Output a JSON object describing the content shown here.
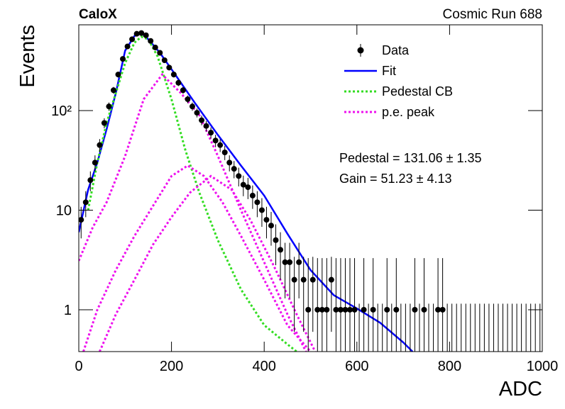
{
  "chart_data": {
    "type": "log-fit",
    "title": "CaloX",
    "subtitle": "Cosmic Run 688",
    "x_label": "ADC",
    "y_label": "Events",
    "xlim": [
      0,
      1000
    ],
    "xticks": [
      0,
      200,
      400,
      600,
      800,
      1000
    ],
    "ylim": [
      0.38,
      726
    ],
    "yticks": [
      1,
      10,
      {
        "value": 100,
        "label": "10²"
      }
    ],
    "log_y": true,
    "legend": "top-right",
    "annotations": [
      "Pedestal = 131.06 ± 1.35",
      "Gain = 51.23 ± 4.13"
    ],
    "series": [
      {
        "name": "Data",
        "type": "points",
        "color": "#000000",
        "x": [
          5,
          15,
          25,
          35,
          45,
          55,
          65,
          75,
          85,
          95,
          105,
          115,
          125,
          135,
          145,
          155,
          165,
          175,
          185,
          195,
          205,
          215,
          225,
          235,
          245,
          255,
          265,
          275,
          285,
          295,
          305,
          315,
          325,
          335,
          345,
          355,
          365,
          375,
          385,
          395,
          405,
          415,
          425,
          435,
          445,
          455,
          465,
          475,
          485,
          495,
          505,
          515,
          525,
          535,
          545,
          555,
          565,
          575,
          585,
          595,
          605,
          615,
          625,
          635,
          645,
          655,
          665,
          675,
          685,
          695,
          705,
          715,
          725,
          735,
          745,
          755,
          765,
          775,
          785,
          795,
          805,
          815,
          825,
          835,
          845,
          855,
          865,
          875,
          885,
          895,
          905,
          915,
          925,
          935,
          945,
          955,
          965,
          975,
          985,
          995
        ],
        "values": [
          8,
          12,
          20,
          30,
          45,
          75,
          110,
          160,
          230,
          330,
          440,
          520,
          590,
          600,
          570,
          500,
          430,
          380,
          320,
          270,
          230,
          190,
          160,
          130,
          110,
          95,
          80,
          70,
          60,
          50,
          45,
          38,
          30,
          26,
          22,
          18,
          17,
          14,
          12,
          10,
          8,
          7,
          5,
          4,
          3,
          3,
          2,
          3,
          2,
          1,
          2,
          1,
          1,
          1,
          2,
          1,
          1,
          1,
          1,
          1,
          0,
          1,
          0,
          1,
          0,
          0,
          1,
          0,
          1,
          0,
          0,
          0,
          1,
          0,
          1,
          0,
          0,
          1,
          1,
          0,
          0,
          0,
          0,
          0,
          0,
          0,
          0,
          0,
          0,
          0,
          0,
          0,
          0,
          0,
          0,
          0,
          0,
          0,
          0,
          0
        ],
        "errors": [
          2.8,
          3.5,
          4.5,
          5.5,
          6.7,
          8.7,
          10.5,
          12.6,
          15.2,
          18.2,
          21,
          22.8,
          24.3,
          24.5,
          23.9,
          22.4,
          20.7,
          19.5,
          17.9,
          16.4,
          15.2,
          13.8,
          12.6,
          11.4,
          10.5,
          9.7,
          8.9,
          8.4,
          7.7,
          7.1,
          6.7,
          6.2,
          5.5,
          5.1,
          4.7,
          4.2,
          4.1,
          3.7,
          3.5,
          3.2,
          2.8,
          2.6,
          2.2,
          2,
          1.7,
          1.7,
          1.4,
          1.7,
          1.4,
          2.3,
          1.4,
          2.3,
          2.3,
          2.3,
          1.4,
          2.3,
          2.3,
          2.3,
          2.3,
          2.3,
          1.15,
          2.3,
          1.15,
          2.3,
          1.15,
          1.15,
          2.3,
          1.15,
          2.3,
          1.15,
          1.15,
          1.15,
          2.3,
          1.15,
          2.3,
          1.15,
          1.15,
          2.3,
          2.3,
          1.15,
          1.15,
          1.15,
          1.15,
          1.15,
          1.15,
          1.15,
          1.15,
          1.15,
          1.15,
          1.15,
          1.15,
          1.15,
          1.15,
          1.15,
          1.15,
          1.15,
          1.15,
          1.15,
          1.15,
          1.15
        ]
      },
      {
        "name": "Fit",
        "type": "line",
        "color": "#0000ff",
        "style": "solid",
        "x": [
          0,
          20,
          40,
          60,
          80,
          100,
          120,
          135,
          150,
          175,
          200,
          250,
          300,
          350,
          400,
          450,
          500,
          550,
          600,
          650,
          700,
          720
        ],
        "values": [
          6,
          16,
          30,
          65,
          150,
          400,
          560,
          600,
          520,
          380,
          260,
          120,
          57,
          28,
          14,
          5.8,
          2.5,
          1.4,
          1.03,
          0.74,
          0.47,
          0.38
        ]
      },
      {
        "name": "Pedestal CB",
        "type": "line",
        "color": "#33dd22",
        "style": "dotted",
        "x": [
          20,
          40,
          60,
          80,
          100,
          120,
          135,
          150,
          170,
          200,
          230,
          260,
          300,
          350,
          400,
          450,
          470
        ],
        "values": [
          10,
          30,
          75,
          150,
          300,
          480,
          550,
          520,
          350,
          130,
          40,
          15,
          5,
          1.6,
          0.7,
          0.45,
          0.38
        ]
      },
      {
        "name": "p.e. peak",
        "type": "curves",
        "color": "#ee11ee",
        "style": "dotted",
        "curves": [
          {
            "x": [
              0,
              30,
              60,
              100,
              140,
              180,
              220,
              260,
              300,
              350,
              400,
              450,
              490
            ],
            "values": [
              3.1,
              6.7,
              12,
              35,
              130,
              230,
              150,
              90,
              35,
              10,
              3,
              0.9,
              0.38
            ]
          },
          {
            "x": [
              10,
              40,
              80,
              120,
              160,
              200,
              235,
              270,
              310,
              350,
              400,
              450,
              500
            ],
            "values": [
              0.38,
              1,
              2.5,
              5.5,
              11,
              22,
              28,
              22,
              12,
              5.5,
              2,
              0.7,
              0.38
            ]
          },
          {
            "x": [
              45,
              80,
              120,
              160,
              200,
              240,
              285,
              330,
              370,
              420,
              470,
              510
            ],
            "values": [
              0.38,
              0.9,
              2,
              4.5,
              8.5,
              15,
              22,
              16,
              8,
              2.8,
              0.9,
              0.38
            ]
          }
        ]
      }
    ]
  }
}
